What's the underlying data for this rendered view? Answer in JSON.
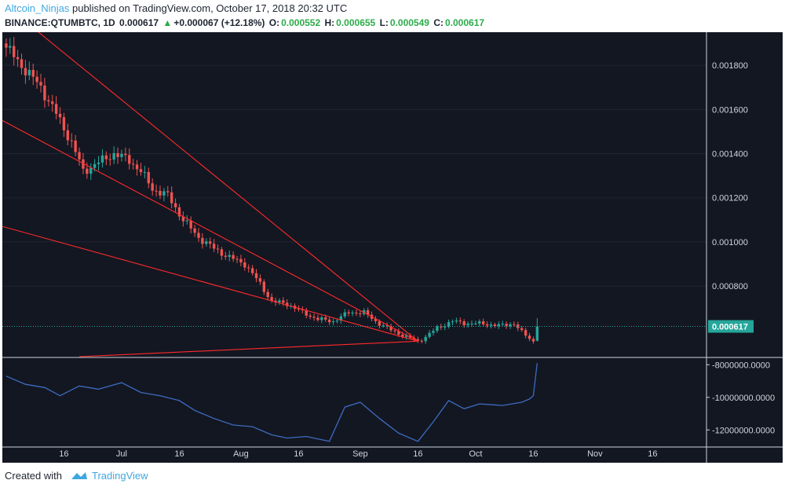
{
  "header": {
    "author": "Altcoin_Ninjas",
    "published_text": " published on TradingView.com, October 17, 2018 20:32 UTC",
    "symbol": "BINANCE:QTUMBTC, 1D",
    "last": "0.000617",
    "change": "+0.000067 (+12.18%)",
    "o_label": "O:",
    "o_value": "0.000552",
    "h_label": "H:",
    "h_value": "0.000655",
    "l_label": "L:",
    "l_value": "0.000549",
    "c_label": "C:",
    "c_value": "0.000617"
  },
  "footer": {
    "created_with": "Created with",
    "brand": "TradingView"
  },
  "colors": {
    "background": "#131722",
    "up": "#26a69a",
    "down": "#ef5350",
    "trendline": "#ff2a2a",
    "indicator": "#3d6bbf",
    "price_line": "#26a69a",
    "axis_text": "#d1d4dc"
  },
  "chart_data": [
    {
      "type": "candlestick",
      "symbol": "BINANCE:QTUMBTC",
      "interval": "1D",
      "price_axis_ticks": [
        "0.001800",
        "0.001600",
        "0.001400",
        "0.001200",
        "0.001000",
        "0.000800"
      ],
      "ylim": [
        0.00048,
        0.00195
      ],
      "current_price_label": "0.000617",
      "x_ticks": [
        "16",
        "Jul",
        "16",
        "Aug",
        "16",
        "Sep",
        "16",
        "Oct",
        "16",
        "Nov",
        "16"
      ],
      "close_path": [
        {
          "x": "2018-06-01",
          "close": 0.00188
        },
        {
          "x": "2018-06-05",
          "close": 0.0018
        },
        {
          "x": "2018-06-10",
          "close": 0.0017
        },
        {
          "x": "2018-06-14",
          "close": 0.00158
        },
        {
          "x": "2018-06-18",
          "close": 0.00145
        },
        {
          "x": "2018-06-21",
          "close": 0.00132
        },
        {
          "x": "2018-06-25",
          "close": 0.00136
        },
        {
          "x": "2018-06-29",
          "close": 0.0014
        },
        {
          "x": "2018-07-03",
          "close": 0.00137
        },
        {
          "x": "2018-07-06",
          "close": 0.00132
        },
        {
          "x": "2018-07-09",
          "close": 0.00124
        },
        {
          "x": "2018-07-13",
          "close": 0.00121
        },
        {
          "x": "2018-07-17",
          "close": 0.0011
        },
        {
          "x": "2018-07-21",
          "close": 0.00102
        },
        {
          "x": "2018-07-25",
          "close": 0.00097
        },
        {
          "x": "2018-07-29",
          "close": 0.00093
        },
        {
          "x": "2018-08-02",
          "close": 0.0009
        },
        {
          "x": "2018-08-06",
          "close": 0.00081
        },
        {
          "x": "2018-08-09",
          "close": 0.00073
        },
        {
          "x": "2018-08-13",
          "close": 0.00072
        },
        {
          "x": "2018-08-17",
          "close": 0.00068
        },
        {
          "x": "2018-08-21",
          "close": 0.00065
        },
        {
          "x": "2018-08-25",
          "close": 0.00064
        },
        {
          "x": "2018-08-29",
          "close": 0.00068
        },
        {
          "x": "2018-09-02",
          "close": 0.00068
        },
        {
          "x": "2018-09-05",
          "close": 0.00064
        },
        {
          "x": "2018-09-09",
          "close": 0.0006
        },
        {
          "x": "2018-09-13",
          "close": 0.00057
        },
        {
          "x": "2018-09-16",
          "close": 0.00055
        },
        {
          "x": "2018-09-18",
          "close": 0.00057
        },
        {
          "x": "2018-09-21",
          "close": 0.00061
        },
        {
          "x": "2018-09-25",
          "close": 0.00064
        },
        {
          "x": "2018-09-29",
          "close": 0.00063
        },
        {
          "x": "2018-10-03",
          "close": 0.00063
        },
        {
          "x": "2018-10-07",
          "close": 0.00062
        },
        {
          "x": "2018-10-11",
          "close": 0.00063
        },
        {
          "x": "2018-10-13",
          "close": 0.00059
        },
        {
          "x": "2018-10-16",
          "close": 0.00055
        },
        {
          "x": "2018-10-17",
          "close": 0.000617
        }
      ],
      "trendlines": [
        {
          "x1": "2018-06-08",
          "y1": 0.00197,
          "x2": "2018-09-16",
          "y2": 0.00055
        },
        {
          "x1": "2018-05-31",
          "y1": 0.00155,
          "x2": "2018-09-16",
          "y2": 0.00055
        },
        {
          "x1": "2018-05-31",
          "y1": 0.00107,
          "x2": "2018-09-16",
          "y2": 0.00055
        },
        {
          "x1": "2018-06-20",
          "y1": 0.00048,
          "x2": "2018-09-16",
          "y2": 0.00055
        }
      ]
    },
    {
      "type": "line",
      "name": "",
      "y_axis_ticks": [
        "-8000000.0000",
        "-10000000.0000",
        "-12000000.0000"
      ],
      "ylim": [
        -13000000,
        -7600000
      ],
      "series": [
        {
          "x": "2018-06-01",
          "y": -8700000
        },
        {
          "x": "2018-06-06",
          "y": -9200000
        },
        {
          "x": "2018-06-11",
          "y": -9400000
        },
        {
          "x": "2018-06-15",
          "y": -9900000
        },
        {
          "x": "2018-06-20",
          "y": -9300000
        },
        {
          "x": "2018-06-25",
          "y": -9500000
        },
        {
          "x": "2018-07-01",
          "y": -9100000
        },
        {
          "x": "2018-07-06",
          "y": -9700000
        },
        {
          "x": "2018-07-11",
          "y": -9900000
        },
        {
          "x": "2018-07-16",
          "y": -10200000
        },
        {
          "x": "2018-07-20",
          "y": -10800000
        },
        {
          "x": "2018-07-25",
          "y": -11300000
        },
        {
          "x": "2018-07-30",
          "y": -11700000
        },
        {
          "x": "2018-08-04",
          "y": -11800000
        },
        {
          "x": "2018-08-09",
          "y": -12300000
        },
        {
          "x": "2018-08-13",
          "y": -12500000
        },
        {
          "x": "2018-08-18",
          "y": -12400000
        },
        {
          "x": "2018-08-24",
          "y": -12700000
        },
        {
          "x": "2018-08-28",
          "y": -10600000
        },
        {
          "x": "2018-09-01",
          "y": -10300000
        },
        {
          "x": "2018-09-06",
          "y": -11300000
        },
        {
          "x": "2018-09-11",
          "y": -12200000
        },
        {
          "x": "2018-09-16",
          "y": -12700000
        },
        {
          "x": "2018-09-20",
          "y": -11500000
        },
        {
          "x": "2018-09-24",
          "y": -10200000
        },
        {
          "x": "2018-09-28",
          "y": -10700000
        },
        {
          "x": "2018-10-02",
          "y": -10400000
        },
        {
          "x": "2018-10-08",
          "y": -10500000
        },
        {
          "x": "2018-10-13",
          "y": -10300000
        },
        {
          "x": "2018-10-15",
          "y": -10100000
        },
        {
          "x": "2018-10-16",
          "y": -9900000
        },
        {
          "x": "2018-10-17",
          "y": -7900000
        }
      ]
    }
  ]
}
